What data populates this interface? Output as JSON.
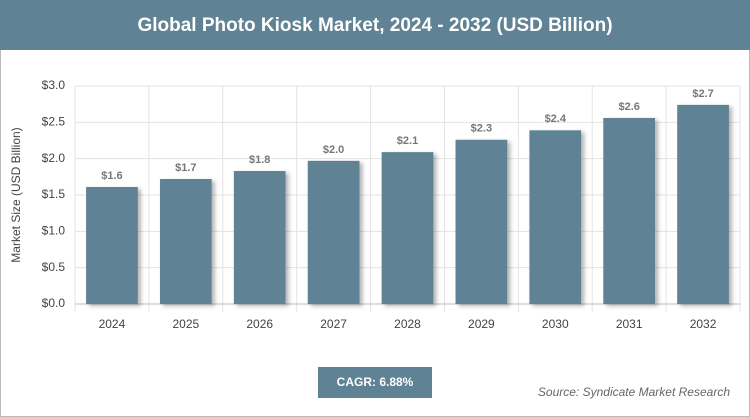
{
  "chart_data": {
    "type": "bar",
    "title": "Global Photo Kiosk Market, 2024 - 2032 (USD Billion)",
    "y_label": "Market Size (USD Billion)",
    "categories": [
      "2024",
      "2025",
      "2026",
      "2027",
      "2028",
      "2029",
      "2030",
      "2031",
      "2032"
    ],
    "values": [
      1.61,
      1.72,
      1.83,
      1.97,
      2.09,
      2.26,
      2.39,
      2.56,
      2.74
    ],
    "value_labels": [
      "$1.6",
      "$1.7",
      "$1.8",
      "$2.0",
      "$2.1",
      "$2.3",
      "$2.4",
      "$2.6",
      "$2.7"
    ],
    "color": "#5f8294",
    "ylim": [
      0,
      3
    ],
    "yticks": [
      {
        "value": 0,
        "label": "$0.0"
      },
      {
        "value": 0.5,
        "label": "$0.5"
      },
      {
        "value": 1,
        "label": "$1.0"
      },
      {
        "value": 1.5,
        "label": "$1.5"
      },
      {
        "value": 2,
        "label": "$2.0"
      },
      {
        "value": 2.5,
        "label": "$2.5"
      },
      {
        "value": 3,
        "label": "$3.0"
      }
    ],
    "grid": true,
    "annotation": "CAGR: 6.88%",
    "source": "Source: Syndicate Market Research"
  }
}
